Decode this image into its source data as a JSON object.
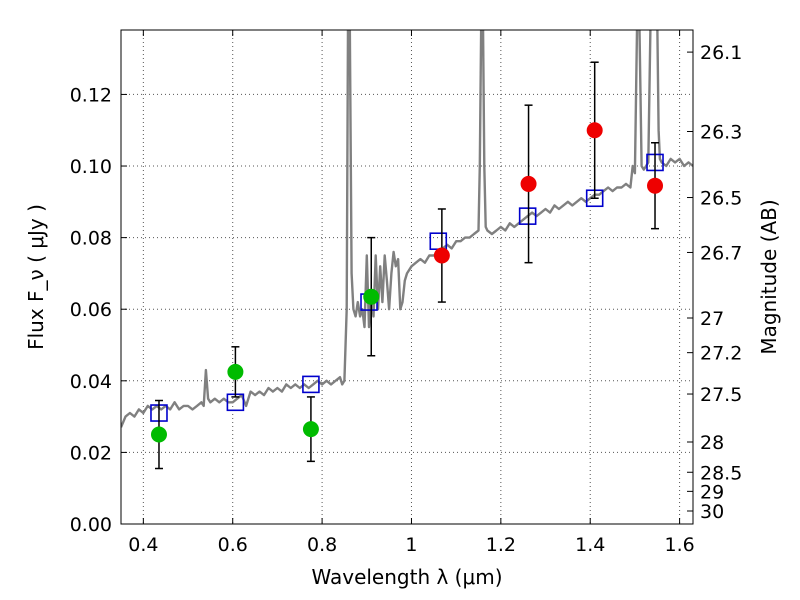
{
  "chart_data": {
    "type": "scatter",
    "title": "",
    "xlabel": "Wavelength  λ (μm)",
    "ylabel": "Flux  F_ν  ( μJy )",
    "y2label": "Magnitude (AB)",
    "xlim": [
      0.35,
      1.63
    ],
    "ylim": [
      0.0,
      0.138
    ],
    "grid": true,
    "x_ticks": [
      {
        "value": 0.4,
        "label": "0.4"
      },
      {
        "value": 0.6,
        "label": "0.6"
      },
      {
        "value": 0.8,
        "label": "0.8"
      },
      {
        "value": 1.0,
        "label": "1"
      },
      {
        "value": 1.2,
        "label": "1.2"
      },
      {
        "value": 1.4,
        "label": "1.4"
      },
      {
        "value": 1.6,
        "label": "1.6"
      }
    ],
    "y_ticks": [
      {
        "value": 0.0,
        "label": "0.00"
      },
      {
        "value": 0.02,
        "label": "0.02"
      },
      {
        "value": 0.04,
        "label": "0.04"
      },
      {
        "value": 0.06,
        "label": "0.06"
      },
      {
        "value": 0.08,
        "label": "0.08"
      },
      {
        "value": 0.1,
        "label": "0.10"
      },
      {
        "value": 0.12,
        "label": "0.12"
      }
    ],
    "y2_ticks": [
      {
        "mag": 26.1,
        "label": "26.1"
      },
      {
        "mag": 26.3,
        "label": "26.3"
      },
      {
        "mag": 26.5,
        "label": "26.5"
      },
      {
        "mag": 26.7,
        "label": "26.7"
      },
      {
        "mag": 27.0,
        "label": "27"
      },
      {
        "mag": 27.2,
        "label": "27.2"
      },
      {
        "mag": 27.5,
        "label": "27.5"
      },
      {
        "mag": 28.0,
        "label": "28"
      },
      {
        "mag": 28.5,
        "label": "28.5"
      },
      {
        "mag": 29.0,
        "label": "29"
      },
      {
        "mag": 30.0,
        "label": "30"
      }
    ],
    "colors": {
      "spectrum": "#808080",
      "model": "#0000cc",
      "green": "#00bb00",
      "red": "#ee0000",
      "error": "#000000",
      "grid": "#555555"
    },
    "series": [
      {
        "kind": "line",
        "role": "spectrum",
        "points": [
          [
            0.35,
            0.027
          ],
          [
            0.36,
            0.03
          ],
          [
            0.37,
            0.031
          ],
          [
            0.38,
            0.03
          ],
          [
            0.39,
            0.032
          ],
          [
            0.4,
            0.031
          ],
          [
            0.41,
            0.033
          ],
          [
            0.42,
            0.032
          ],
          [
            0.43,
            0.033
          ],
          [
            0.44,
            0.032
          ],
          [
            0.45,
            0.033
          ],
          [
            0.46,
            0.032
          ],
          [
            0.47,
            0.034
          ],
          [
            0.48,
            0.032
          ],
          [
            0.49,
            0.033
          ],
          [
            0.5,
            0.033
          ],
          [
            0.51,
            0.032
          ],
          [
            0.52,
            0.033
          ],
          [
            0.53,
            0.034
          ],
          [
            0.535,
            0.033
          ],
          [
            0.54,
            0.043
          ],
          [
            0.545,
            0.035
          ],
          [
            0.55,
            0.034
          ],
          [
            0.56,
            0.035
          ],
          [
            0.57,
            0.034
          ],
          [
            0.58,
            0.035
          ],
          [
            0.59,
            0.034
          ],
          [
            0.6,
            0.034
          ],
          [
            0.61,
            0.035
          ],
          [
            0.62,
            0.036
          ],
          [
            0.63,
            0.033
          ],
          [
            0.64,
            0.037
          ],
          [
            0.65,
            0.036
          ],
          [
            0.66,
            0.037
          ],
          [
            0.67,
            0.036
          ],
          [
            0.68,
            0.038
          ],
          [
            0.69,
            0.037
          ],
          [
            0.7,
            0.038
          ],
          [
            0.71,
            0.037
          ],
          [
            0.72,
            0.039
          ],
          [
            0.73,
            0.038
          ],
          [
            0.74,
            0.039
          ],
          [
            0.75,
            0.038
          ],
          [
            0.76,
            0.039
          ],
          [
            0.77,
            0.038
          ],
          [
            0.78,
            0.039
          ],
          [
            0.79,
            0.04
          ],
          [
            0.8,
            0.039
          ],
          [
            0.81,
            0.04
          ],
          [
            0.82,
            0.039
          ],
          [
            0.83,
            0.04
          ],
          [
            0.84,
            0.041
          ],
          [
            0.845,
            0.039
          ],
          [
            0.85,
            0.04
          ],
          [
            0.855,
            0.06
          ],
          [
            0.858,
            0.14
          ],
          [
            0.862,
            0.14
          ],
          [
            0.866,
            0.07
          ],
          [
            0.87,
            0.06
          ],
          [
            0.875,
            0.058
          ],
          [
            0.88,
            0.062
          ],
          [
            0.885,
            0.058
          ],
          [
            0.89,
            0.06
          ],
          [
            0.895,
            0.055
          ],
          [
            0.9,
            0.075
          ],
          [
            0.905,
            0.055
          ],
          [
            0.91,
            0.065
          ],
          [
            0.915,
            0.058
          ],
          [
            0.92,
            0.075
          ],
          [
            0.925,
            0.06
          ],
          [
            0.93,
            0.072
          ],
          [
            0.935,
            0.062
          ],
          [
            0.94,
            0.075
          ],
          [
            0.945,
            0.068
          ],
          [
            0.95,
            0.06
          ],
          [
            0.955,
            0.07
          ],
          [
            0.96,
            0.076
          ],
          [
            0.965,
            0.072
          ],
          [
            0.97,
            0.074
          ],
          [
            0.975,
            0.06
          ],
          [
            0.98,
            0.062
          ],
          [
            0.985,
            0.068
          ],
          [
            0.99,
            0.07
          ],
          [
            1.0,
            0.072
          ],
          [
            1.01,
            0.073
          ],
          [
            1.02,
            0.074
          ],
          [
            1.03,
            0.073
          ],
          [
            1.04,
            0.075
          ],
          [
            1.05,
            0.075
          ],
          [
            1.06,
            0.076
          ],
          [
            1.07,
            0.077
          ],
          [
            1.08,
            0.078
          ],
          [
            1.09,
            0.077
          ],
          [
            1.1,
            0.079
          ],
          [
            1.11,
            0.079
          ],
          [
            1.12,
            0.08
          ],
          [
            1.13,
            0.08
          ],
          [
            1.14,
            0.081
          ],
          [
            1.15,
            0.082
          ],
          [
            1.153,
            0.1
          ],
          [
            1.156,
            0.14
          ],
          [
            1.16,
            0.14
          ],
          [
            1.163,
            0.1
          ],
          [
            1.166,
            0.083
          ],
          [
            1.17,
            0.082
          ],
          [
            1.18,
            0.081
          ],
          [
            1.19,
            0.082
          ],
          [
            1.2,
            0.083
          ],
          [
            1.21,
            0.082
          ],
          [
            1.22,
            0.084
          ],
          [
            1.23,
            0.083
          ],
          [
            1.24,
            0.084
          ],
          [
            1.25,
            0.085
          ],
          [
            1.26,
            0.086
          ],
          [
            1.27,
            0.087
          ],
          [
            1.28,
            0.086
          ],
          [
            1.29,
            0.087
          ],
          [
            1.3,
            0.088
          ],
          [
            1.31,
            0.087
          ],
          [
            1.32,
            0.089
          ],
          [
            1.33,
            0.088
          ],
          [
            1.34,
            0.089
          ],
          [
            1.35,
            0.09
          ],
          [
            1.36,
            0.089
          ],
          [
            1.37,
            0.09
          ],
          [
            1.38,
            0.091
          ],
          [
            1.39,
            0.09
          ],
          [
            1.4,
            0.091
          ],
          [
            1.41,
            0.092
          ],
          [
            1.42,
            0.092
          ],
          [
            1.43,
            0.093
          ],
          [
            1.44,
            0.094
          ],
          [
            1.45,
            0.093
          ],
          [
            1.46,
            0.094
          ],
          [
            1.47,
            0.094
          ],
          [
            1.48,
            0.095
          ],
          [
            1.49,
            0.094
          ],
          [
            1.495,
            0.1
          ],
          [
            1.5,
            0.098
          ],
          [
            1.505,
            0.14
          ],
          [
            1.51,
            0.14
          ],
          [
            1.515,
            0.1
          ],
          [
            1.52,
            0.099
          ],
          [
            1.525,
            0.1
          ],
          [
            1.53,
            0.101
          ],
          [
            1.535,
            0.14
          ],
          [
            1.54,
            0.14
          ],
          [
            1.545,
            0.14
          ],
          [
            1.55,
            0.14
          ],
          [
            1.553,
            0.11
          ],
          [
            1.556,
            0.102
          ],
          [
            1.56,
            0.101
          ],
          [
            1.57,
            0.1
          ],
          [
            1.58,
            0.102
          ],
          [
            1.59,
            0.101
          ],
          [
            1.6,
            0.102
          ],
          [
            1.61,
            0.1
          ],
          [
            1.62,
            0.101
          ],
          [
            1.63,
            0.1
          ]
        ]
      },
      {
        "kind": "squares",
        "role": "model",
        "points": [
          [
            0.435,
            0.031
          ],
          [
            0.606,
            0.034
          ],
          [
            0.775,
            0.039
          ],
          [
            0.905,
            0.062
          ],
          [
            1.06,
            0.079
          ],
          [
            1.26,
            0.086
          ],
          [
            1.41,
            0.091
          ],
          [
            1.545,
            0.101
          ]
        ]
      },
      {
        "kind": "circles",
        "role": "green",
        "points": [
          [
            0.435,
            0.025,
            0.0095
          ],
          [
            0.606,
            0.0425,
            0.007
          ],
          [
            0.775,
            0.0265,
            0.009
          ],
          [
            0.91,
            0.0635,
            0.0165
          ]
        ]
      },
      {
        "kind": "circles",
        "role": "red",
        "points": [
          [
            1.068,
            0.075,
            0.013
          ],
          [
            1.262,
            0.095,
            0.022
          ],
          [
            1.41,
            0.11,
            0.019
          ],
          [
            1.545,
            0.0945,
            0.012
          ]
        ]
      }
    ]
  }
}
